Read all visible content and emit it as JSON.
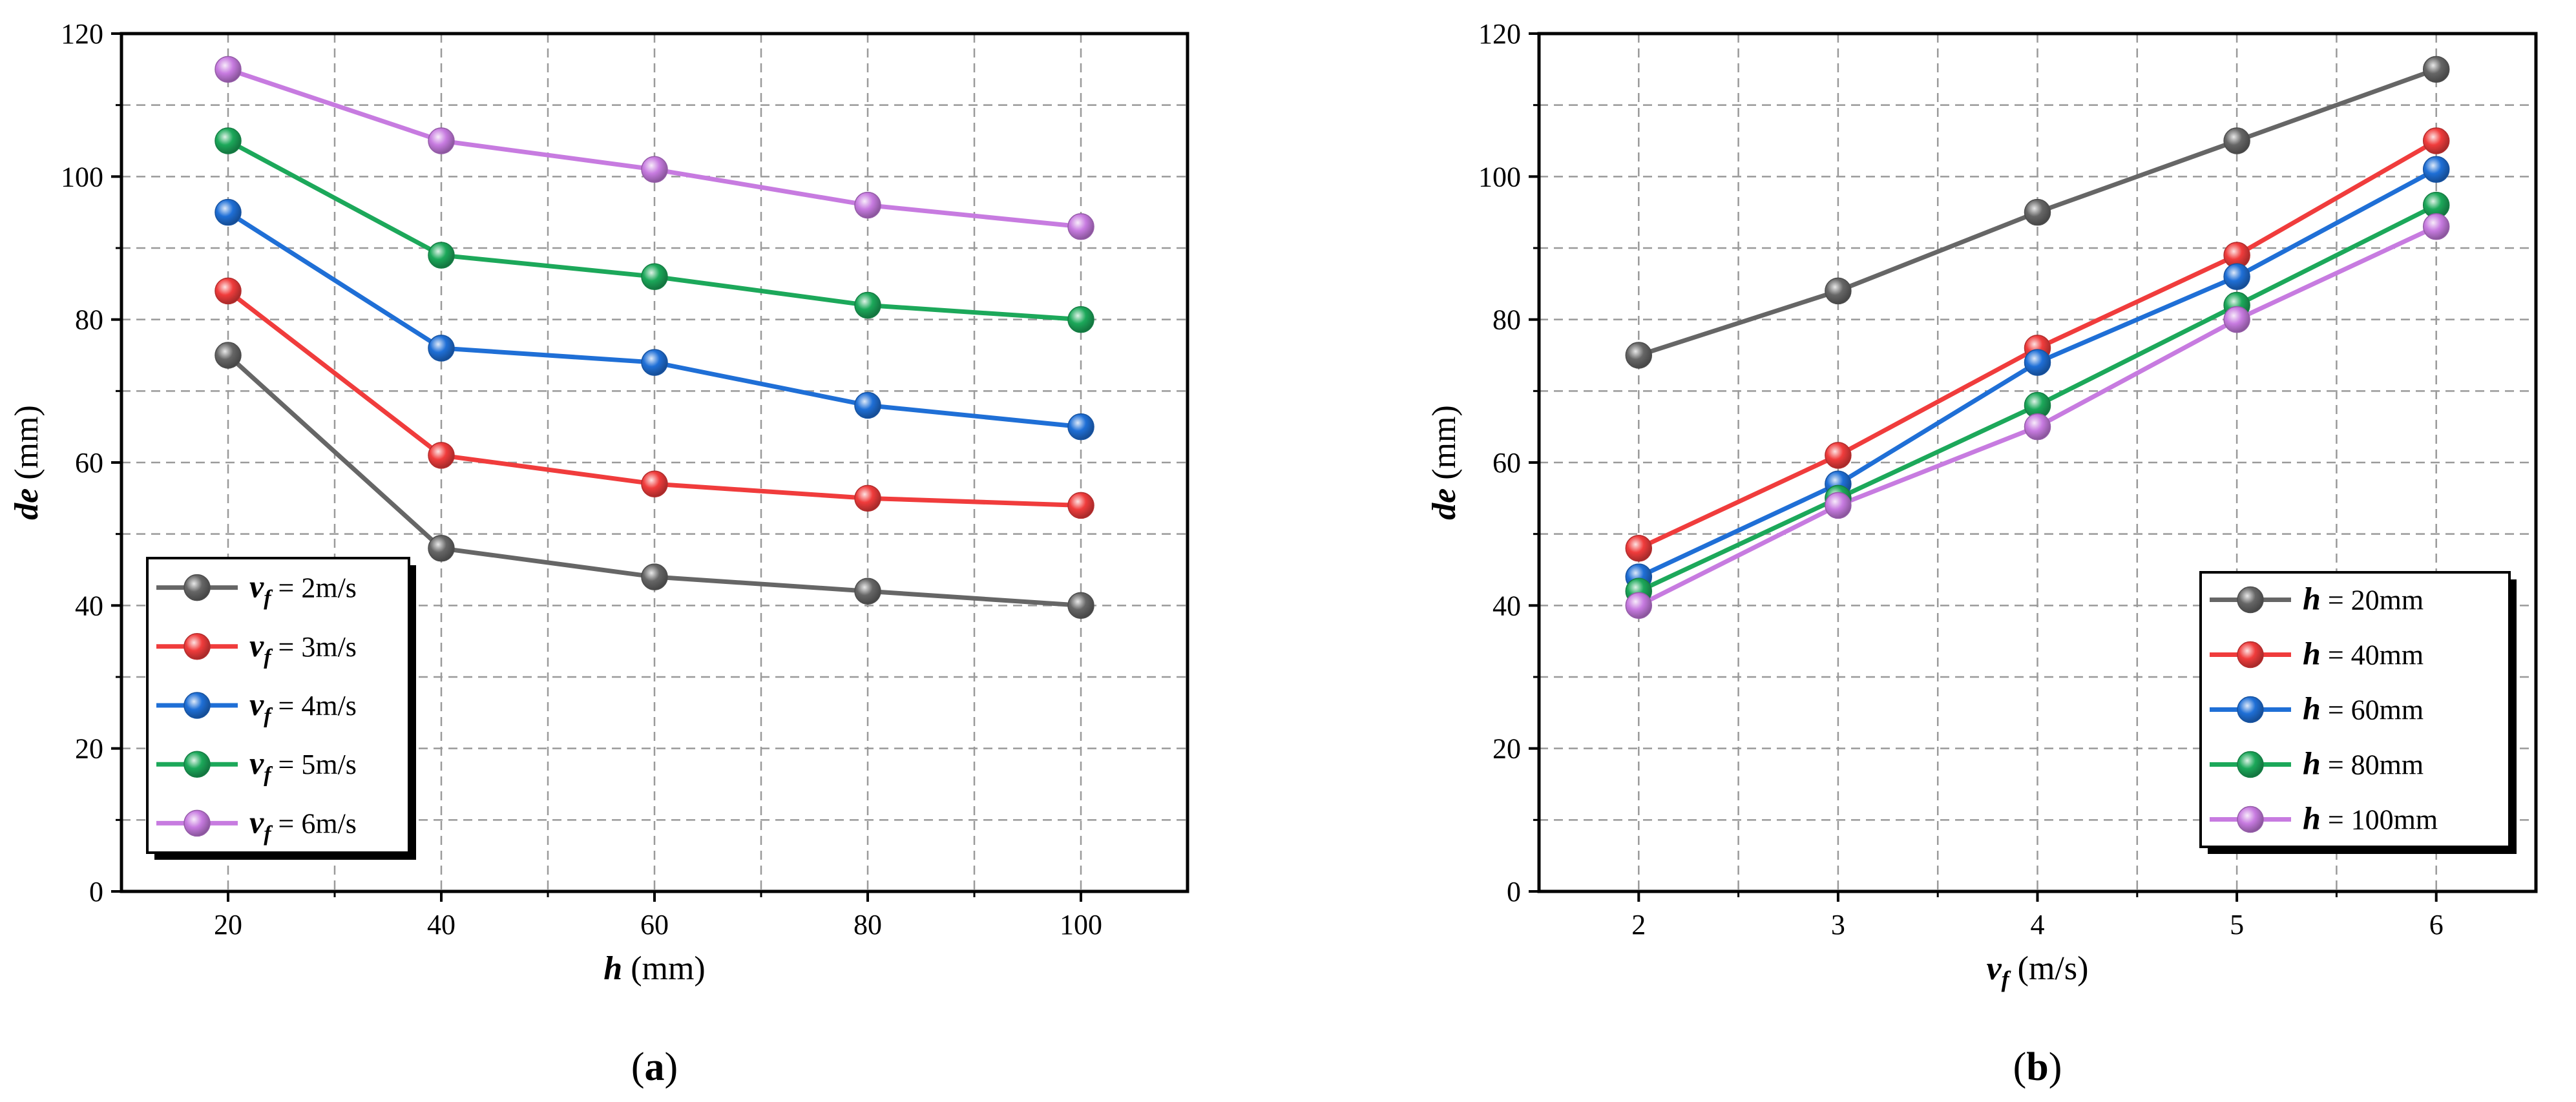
{
  "chart_data": [
    {
      "type": "line",
      "panel_label": "a",
      "xlabel": {
        "var": "h",
        "unit": "(mm)"
      },
      "ylabel": {
        "var": "de",
        "unit": "(mm)"
      },
      "x": [
        20,
        40,
        60,
        80,
        100
      ],
      "xlim": [
        10,
        110
      ],
      "ylim": [
        0,
        120
      ],
      "xticks": [
        20,
        40,
        60,
        80,
        100
      ],
      "yticks": [
        0,
        20,
        40,
        60,
        80,
        100,
        120
      ],
      "grid": true,
      "legend_position": "bottom-left",
      "series": [
        {
          "var": "v",
          "sub": "f",
          "value": "= 2m/s",
          "color": "#666666",
          "values": [
            75,
            48,
            44,
            42,
            40
          ]
        },
        {
          "var": "v",
          "sub": "f",
          "value": "= 3m/s",
          "color": "#f03c3c",
          "values": [
            84,
            61,
            57,
            55,
            54
          ]
        },
        {
          "var": "v",
          "sub": "f",
          "value": "= 4m/s",
          "color": "#1f6fd6",
          "values": [
            95,
            76,
            74,
            68,
            65
          ]
        },
        {
          "var": "v",
          "sub": "f",
          "value": "= 5m/s",
          "color": "#1ca85a",
          "values": [
            105,
            89,
            86,
            82,
            80
          ]
        },
        {
          "var": "v",
          "sub": "f",
          "value": "= 6m/s",
          "color": "#c77be0",
          "values": [
            115,
            105,
            101,
            96,
            93
          ]
        }
      ]
    },
    {
      "type": "line",
      "panel_label": "b",
      "xlabel": {
        "var": "v",
        "sub": "f",
        "unit": "(m/s)"
      },
      "ylabel": {
        "var": "de",
        "unit": "(mm)"
      },
      "x": [
        2,
        3,
        4,
        5,
        6
      ],
      "xlim": [
        1.5,
        6.5
      ],
      "ylim": [
        0,
        120
      ],
      "xticks": [
        2,
        3,
        4,
        5,
        6
      ],
      "yticks": [
        0,
        20,
        40,
        60,
        80,
        100,
        120
      ],
      "grid": true,
      "legend_position": "bottom-right",
      "series": [
        {
          "var": "h",
          "value": "= 20mm",
          "color": "#666666",
          "values": [
            75,
            84,
            95,
            105,
            115
          ]
        },
        {
          "var": "h",
          "value": "= 40mm",
          "color": "#f03c3c",
          "values": [
            48,
            61,
            76,
            89,
            105
          ]
        },
        {
          "var": "h",
          "value": "= 60mm",
          "color": "#1f6fd6",
          "values": [
            44,
            57,
            74,
            86,
            101
          ]
        },
        {
          "var": "h",
          "value": "= 80mm",
          "color": "#1ca85a",
          "values": [
            42,
            55,
            68,
            82,
            96
          ]
        },
        {
          "var": "h",
          "value": "= 100mm",
          "color": "#c77be0",
          "values": [
            40,
            54,
            65,
            80,
            93
          ]
        }
      ]
    }
  ]
}
